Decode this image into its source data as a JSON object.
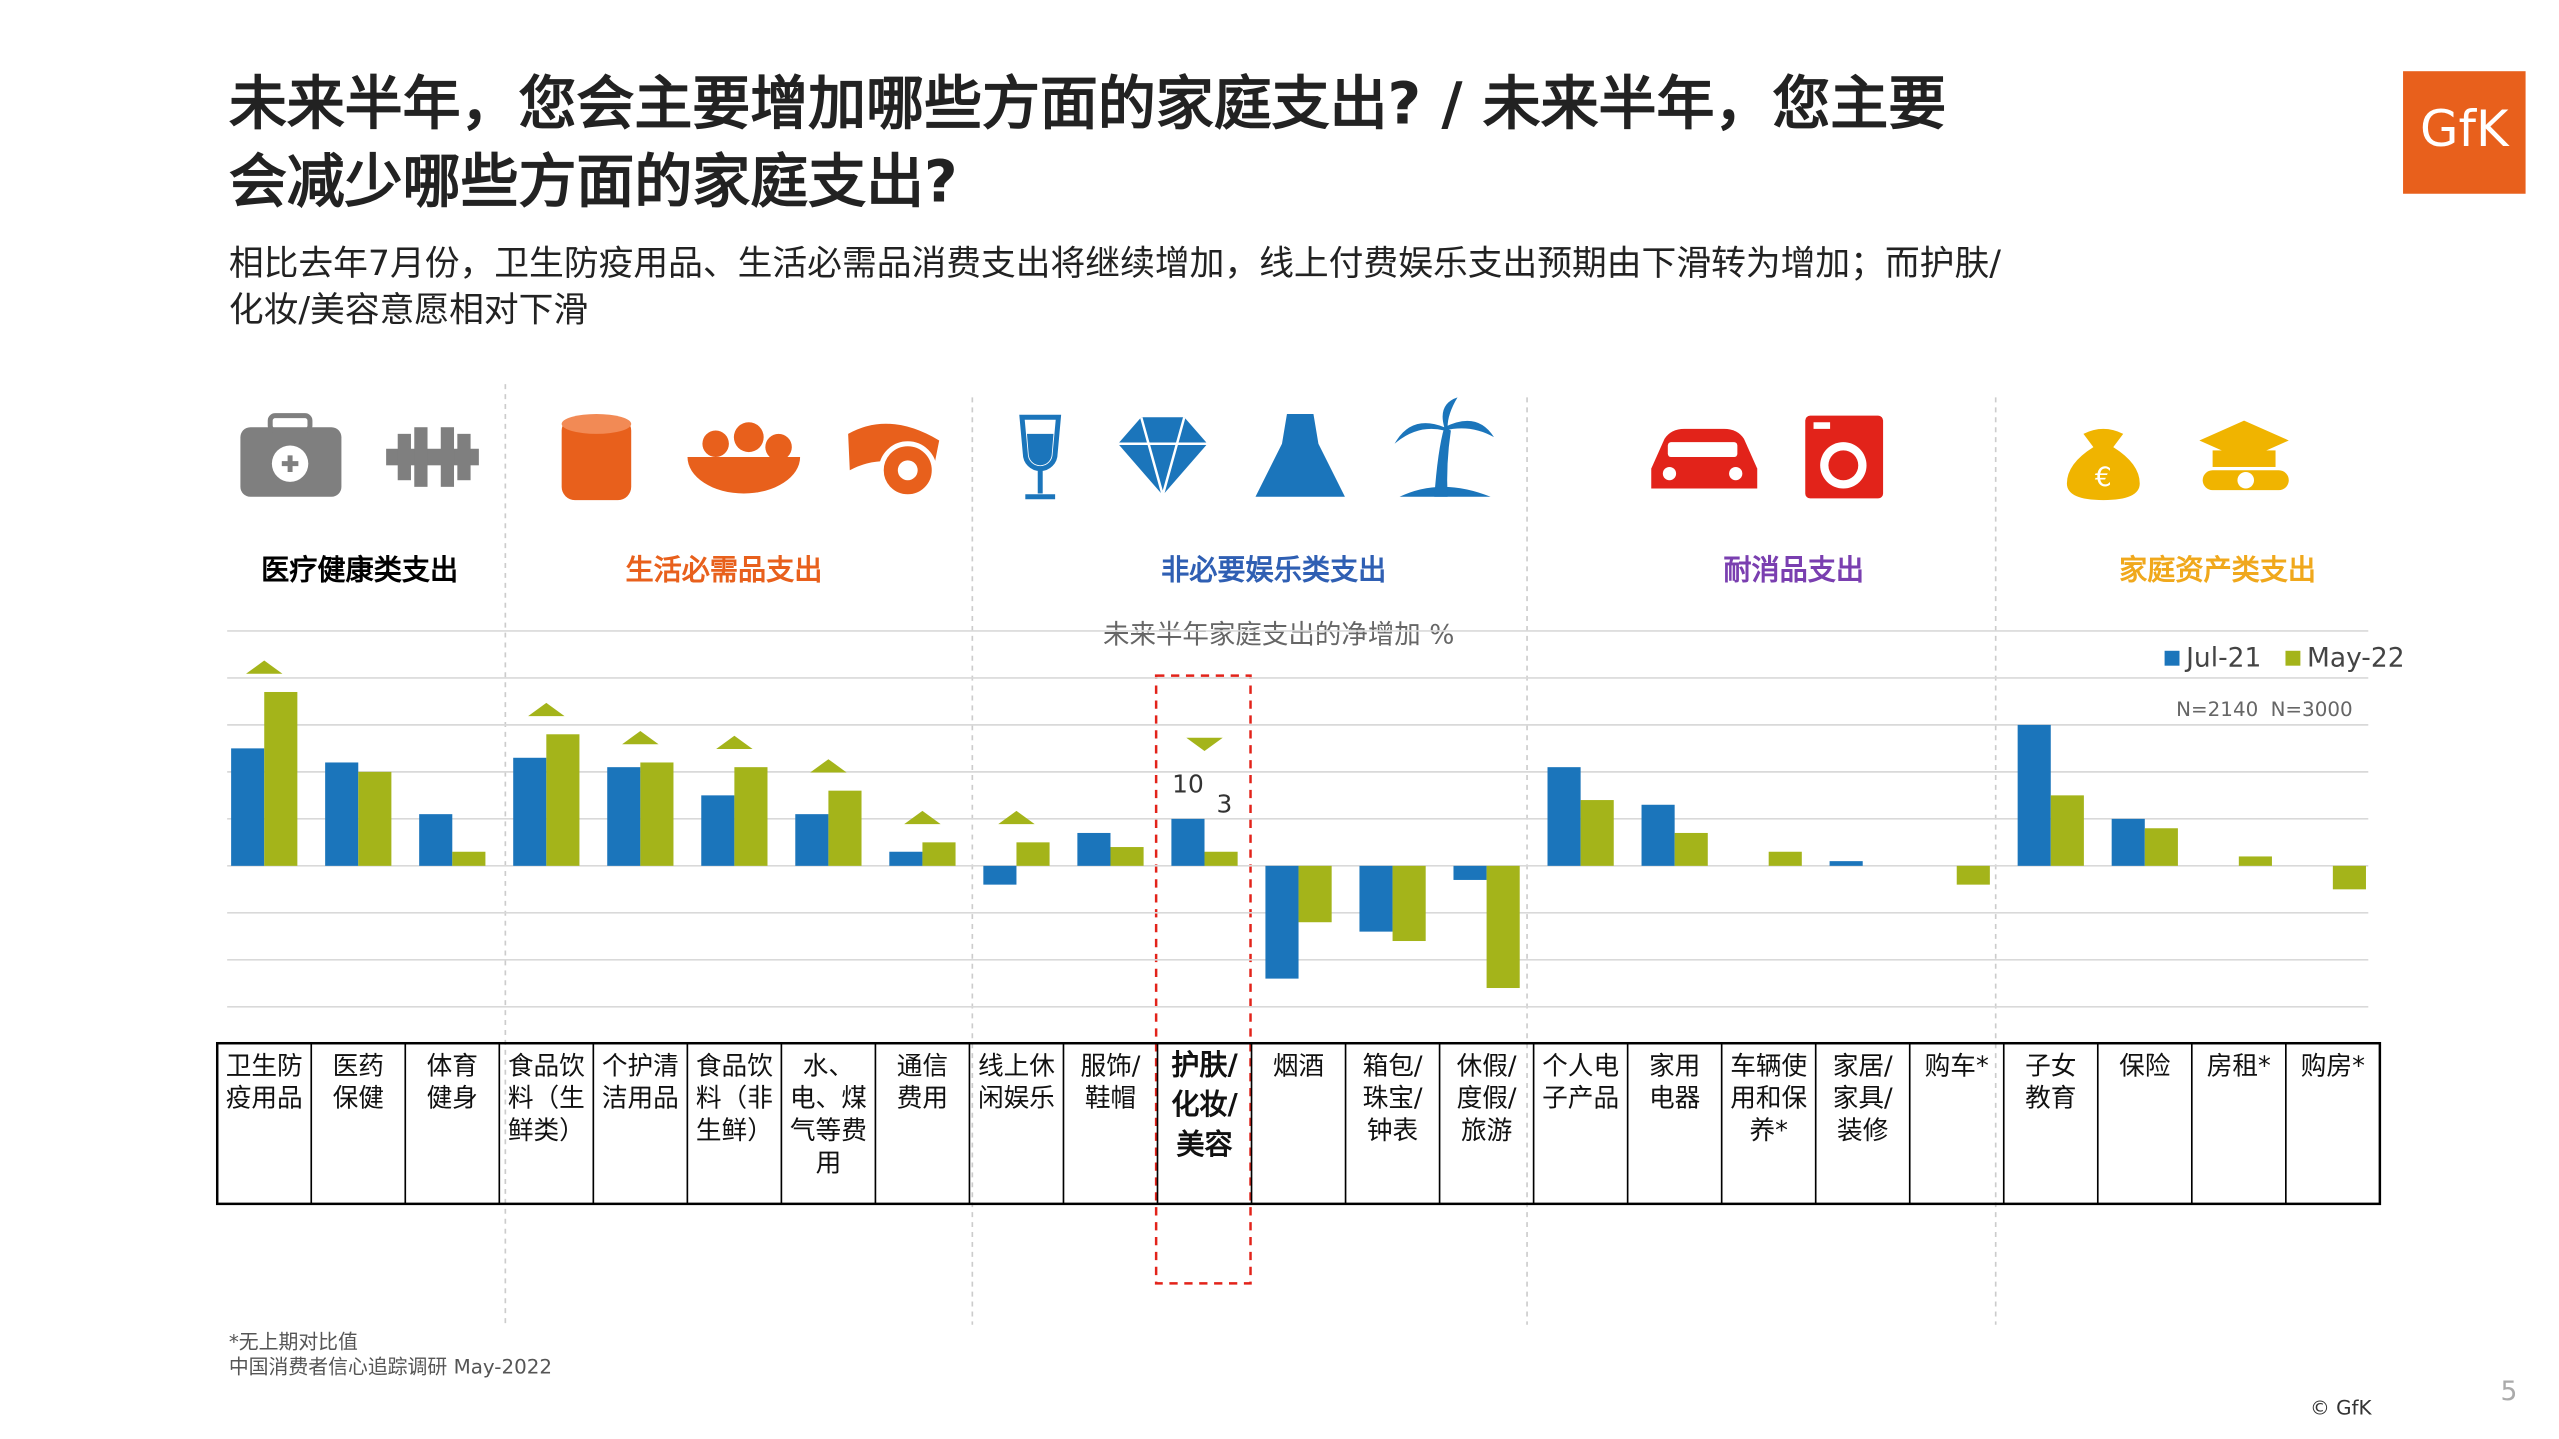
{
  "header": {
    "title_line1": "未来半年，您会主要增加哪些方面的家庭支出? / 未来半年，您主要",
    "title_line2": "会减少哪些方面的家庭支出?",
    "subtitle_line1": "相比去年7月份，卫生防疫用品、生活必需品消费支出将继续增加，线上付费娱乐支出预期由下滑转为增加；而护肤/",
    "subtitle_line2": "化妆/美容意愿相对下滑",
    "logo": "GfK"
  },
  "groups": [
    {
      "label": "医疗健康类支出",
      "color": "#000000"
    },
    {
      "label": "生活必需品支出",
      "color": "#e8601c"
    },
    {
      "label": "非必要娱乐类支出",
      "color": "#2f5fb3"
    },
    {
      "label": "耐消品支出",
      "color": "#7a3fb0"
    },
    {
      "label": "家庭资产类支出",
      "color": "#f0a81c"
    }
  ],
  "chart_data": {
    "type": "bar",
    "title": "未来半年家庭支出的净增加 %",
    "categories": [
      "卫生防\n疫用品",
      "医药\n保健",
      "体育\n健身",
      "食品饮\n料（生\n鲜类）",
      "个护清\n洁用品",
      "食品饮\n料（非\n生鲜）",
      "水、\n电、煤\n气等费\n用",
      "通信\n费用",
      "线上休\n闲娱乐",
      "服饰/\n鞋帽",
      "护肤/\n化妆/\n美容",
      "烟酒",
      "箱包/\n珠宝/\n钟表",
      "休假/\n度假/\n旅游",
      "个人电\n子产品",
      "家用\n电器",
      "车辆使\n用和保\n养*",
      "家居/\n家具/\n装修",
      "购车*",
      "子女\n教育",
      "保险",
      "房租*",
      "购房*"
    ],
    "series": [
      {
        "name": "Jul-21",
        "color": "#1b75bb",
        "sample": "N=2140",
        "values": [
          25,
          22,
          11,
          23,
          21,
          15,
          11,
          3,
          -4,
          7,
          10,
          -24,
          -14,
          -3,
          21,
          13,
          null,
          1,
          null,
          30,
          10,
          null,
          null
        ]
      },
      {
        "name": "May-22",
        "color": "#a4b41a",
        "sample": "N=3000",
        "values": [
          37,
          20,
          3,
          28,
          22,
          21,
          16,
          5,
          5,
          4,
          3,
          -12,
          -16,
          -26,
          14,
          7,
          3,
          0,
          -4,
          15,
          8,
          2,
          -5
        ]
      }
    ],
    "markers": [
      "up",
      null,
      null,
      "up",
      "up",
      "up",
      "up",
      "up",
      "up",
      null,
      "down",
      null,
      null,
      null,
      null,
      null,
      null,
      null,
      null,
      null,
      null,
      null,
      null
    ],
    "highlight": 10,
    "ylim": [
      -30,
      50
    ],
    "yticks": [
      -30,
      -20,
      -10,
      0,
      10,
      20,
      30,
      40,
      50
    ],
    "grid": true,
    "legend": "top-right"
  },
  "footer": {
    "note": "*无上期对比值",
    "source": "中国消费者信心追踪调研 May-2022",
    "page": "5",
    "copyright": "© GfK"
  }
}
